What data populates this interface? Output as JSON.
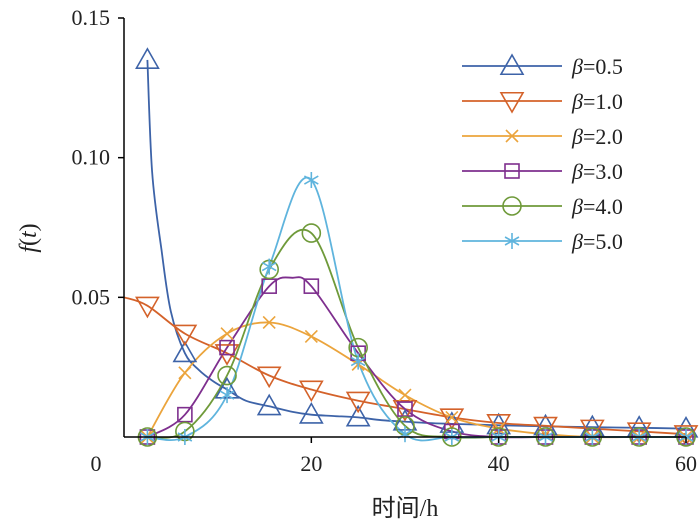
{
  "chart_data": {
    "type": "line",
    "title": "",
    "xlabel": "时间/h",
    "ylabel_func": "f",
    "ylabel_arg": "t",
    "xlim": [
      0,
      60
    ],
    "ylim": [
      0,
      0.15
    ],
    "xticks": [
      0,
      20,
      40,
      60
    ],
    "xtick_labels": [
      "0",
      "20",
      "40",
      "60"
    ],
    "yticks": [
      0.05,
      0.1,
      0.15
    ],
    "ytick_labels": [
      "0.05",
      "0.10",
      "0.15"
    ],
    "grid": false,
    "legend_position": "top-right",
    "legend_symbol": "β",
    "marker_x": [
      2.5,
      6.5,
      11,
      15.5,
      20,
      25,
      30,
      35,
      40,
      45,
      50,
      55,
      60
    ],
    "series": [
      {
        "name": "=0.5",
        "color": "#3d63a8",
        "marker": "triangle-up",
        "x": [
          2.5,
          3,
          4,
          5,
          6.5,
          8,
          9.5,
          11,
          13,
          15.5,
          18,
          20,
          22.5,
          25,
          27.5,
          30,
          32.5,
          35,
          40,
          45,
          50,
          55,
          60
        ],
        "y": [
          0.135,
          0.095,
          0.067,
          0.045,
          0.03,
          0.024,
          0.02,
          0.017,
          0.013,
          0.011,
          0.009,
          0.008,
          0.0075,
          0.007,
          0.006,
          0.0055,
          0.005,
          0.0047,
          0.0042,
          0.0038,
          0.0035,
          0.0033,
          0.003
        ]
      },
      {
        "name": "=1.0",
        "color": "#d4622a",
        "marker": "triangle-down",
        "x": [
          0,
          2.5,
          6.5,
          11,
          15.5,
          20,
          25,
          30,
          35,
          40,
          45,
          50,
          55,
          60
        ],
        "y": [
          0.05,
          0.047,
          0.037,
          0.03,
          0.022,
          0.017,
          0.013,
          0.01,
          0.007,
          0.005,
          0.004,
          0.003,
          0.002,
          0.001
        ]
      },
      {
        "name": "=2.0",
        "color": "#eba43c",
        "marker": "x",
        "x": [
          2.5,
          6.5,
          11,
          15.5,
          20,
          25,
          30,
          35,
          40,
          45,
          50,
          55,
          60
        ],
        "y": [
          0.0,
          0.023,
          0.037,
          0.041,
          0.036,
          0.026,
          0.015,
          0.007,
          0.003,
          0.001,
          0.0,
          0.0,
          0.0
        ]
      },
      {
        "name": "=3.0",
        "color": "#7e2f8e",
        "marker": "square",
        "x": [
          2.5,
          6.5,
          11,
          15.5,
          18,
          20,
          25,
          30,
          35,
          40,
          45,
          50,
          55,
          60
        ],
        "y": [
          0.0,
          0.008,
          0.032,
          0.054,
          0.057,
          0.054,
          0.03,
          0.01,
          0.002,
          0.0,
          0.0,
          0.0,
          0.0,
          0.0
        ]
      },
      {
        "name": "=4.0",
        "color": "#6f9a3a",
        "marker": "circle",
        "x": [
          2.5,
          6.5,
          11,
          15.5,
          20,
          25,
          30,
          35,
          40,
          45,
          50,
          55,
          60
        ],
        "y": [
          0.0,
          0.002,
          0.022,
          0.06,
          0.073,
          0.032,
          0.004,
          0.0,
          0.0,
          0.0,
          0.0,
          0.0,
          0.0
        ]
      },
      {
        "name": "=5.0",
        "color": "#5fb4dd",
        "marker": "asterisk",
        "x": [
          2.5,
          6.5,
          11,
          15.5,
          20,
          25,
          30,
          35,
          40,
          45,
          50,
          55,
          60
        ],
        "y": [
          0.0,
          0.0,
          0.015,
          0.061,
          0.092,
          0.027,
          0.001,
          0.0,
          0.0,
          0.0,
          0.0,
          0.0,
          0.0
        ]
      }
    ]
  }
}
